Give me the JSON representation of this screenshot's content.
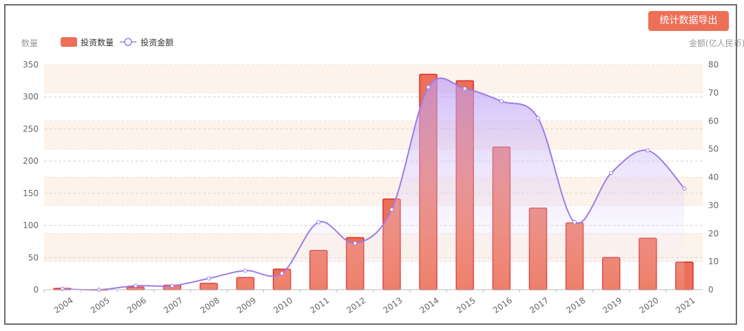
{
  "toolbar": {
    "export_label": "统计数据导出"
  },
  "chart_data": {
    "type": "bar",
    "categories": [
      "2004",
      "2005",
      "2006",
      "2007",
      "2008",
      "2009",
      "2010",
      "2011",
      "2012",
      "2013",
      "2014",
      "2015",
      "2016",
      "2017",
      "2018",
      "2019",
      "2020",
      "2021"
    ],
    "series": [
      {
        "name": "投资数量",
        "type": "bar",
        "axis": "left",
        "values": [
          2,
          0,
          4,
          7,
          10,
          19,
          32,
          61,
          81,
          141,
          335,
          325,
          222,
          127,
          104,
          50,
          80,
          43
        ]
      },
      {
        "name": "投资金额",
        "type": "line",
        "axis": "right",
        "smooth": true,
        "values": [
          0.3,
          0,
          1.4,
          1.4,
          4,
          6.8,
          5.8,
          24,
          16.5,
          28.5,
          72,
          71.5,
          67,
          61,
          24,
          41.5,
          49.5,
          36
        ]
      }
    ],
    "ylabel": "数量",
    "y2label": "金额(亿人民币)",
    "ylim": [
      0,
      350
    ],
    "y2lim": [
      0,
      80
    ],
    "yticks": [
      0,
      50,
      100,
      150,
      200,
      250,
      300,
      350
    ],
    "y2ticks": [
      0,
      10,
      20,
      30,
      40,
      50,
      60,
      70,
      80
    ],
    "legend": "top-left",
    "grid": true,
    "colors": {
      "bar": "#ec6f57",
      "bar_border": "#d72b2b",
      "line": "#9d7be8",
      "band": "#fdf3ea"
    }
  }
}
